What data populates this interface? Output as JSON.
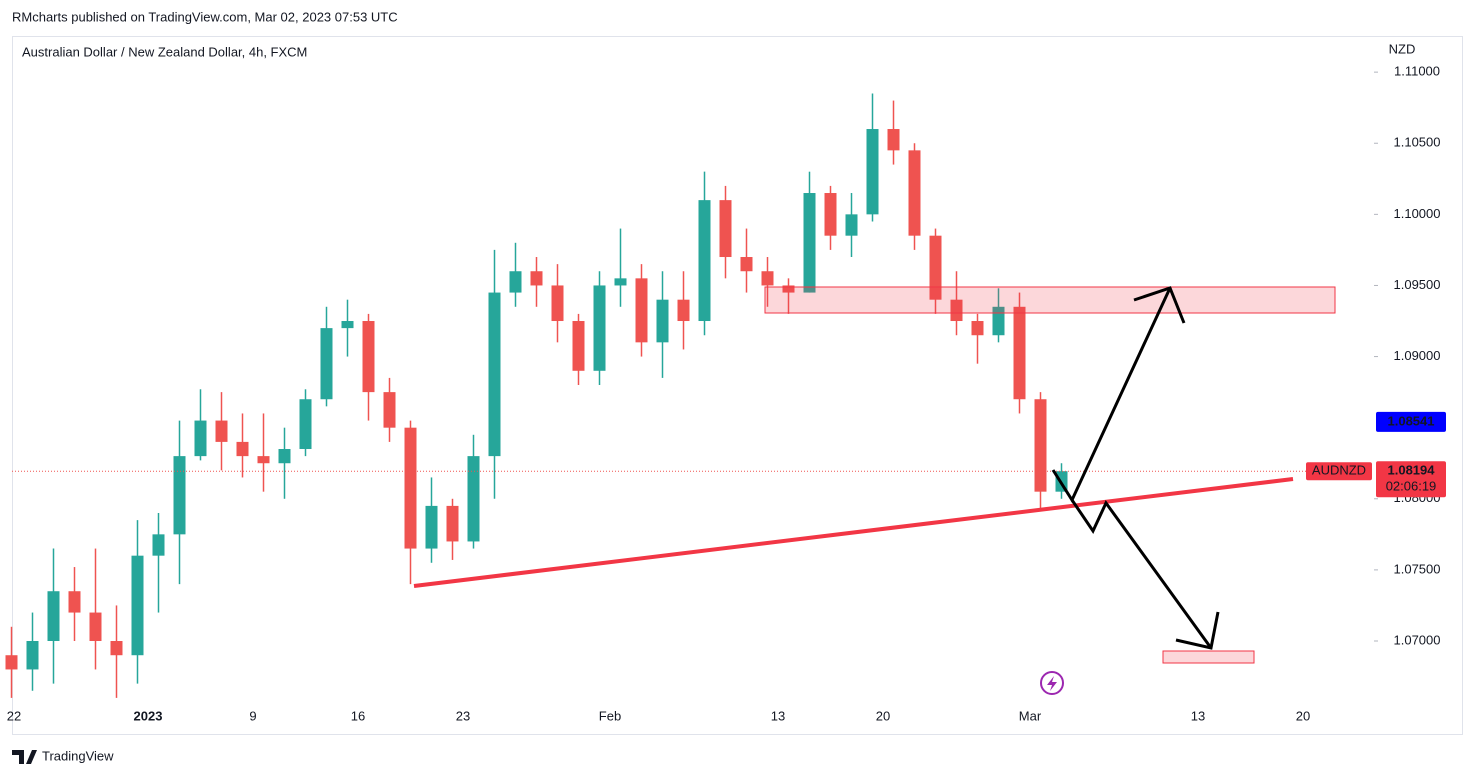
{
  "header": "RMcharts published on TradingView.com, Mar 02, 2023 07:53 UTC",
  "footer": "TradingView",
  "chart_data": {
    "type": "candlestick",
    "title": "Australian Dollar / New Zealand Dollar, 4h, FXCM",
    "currency": "NZD",
    "symbol": "AUDNZD",
    "countdown": "02:06:19",
    "indicator_value": 1.08541,
    "up_color": "#26a69a",
    "down_color": "#ef5350",
    "categories": [
      "22",
      null,
      null,
      null,
      null,
      null,
      null,
      "2023",
      null,
      null,
      null,
      null,
      "9",
      null,
      null,
      null,
      null,
      "16",
      null,
      null,
      null,
      null,
      "23",
      null,
      null,
      null,
      null,
      null,
      null,
      "Feb",
      null,
      null,
      null,
      null,
      null,
      null,
      null,
      "13",
      null,
      null,
      null,
      null,
      "20",
      null,
      null,
      null,
      null,
      null,
      null,
      "Mar",
      null,
      null,
      null,
      null,
      null,
      null,
      null,
      "13",
      null,
      null,
      null,
      null,
      "20"
    ],
    "open": [
      1.069,
      1.068,
      1.07,
      1.0735,
      1.072,
      1.07,
      1.069,
      1.076,
      1.0775,
      1.083,
      1.0855,
      1.084,
      1.083,
      1.0825,
      1.0835,
      1.087,
      1.092,
      1.0925,
      1.0875,
      1.085,
      1.0765,
      1.0795,
      1.077,
      1.083,
      1.0945,
      1.096,
      1.095,
      1.0925,
      1.089,
      1.095,
      1.0955,
      1.091,
      1.094,
      1.0925,
      1.101,
      1.097,
      1.096,
      1.095,
      1.0945,
      1.1015,
      1.0985,
      1.1,
      1.106,
      1.1045,
      1.0985,
      1.094,
      1.0925,
      1.0915,
      1.0935,
      1.087,
      1.0805,
      null,
      null,
      null,
      null,
      null,
      null,
      null,
      null,
      null,
      null,
      null,
      null
    ],
    "high": [
      1.071,
      1.072,
      1.0765,
      1.0752,
      1.0765,
      1.0725,
      1.0785,
      1.079,
      1.0855,
      1.0877,
      1.0875,
      1.086,
      1.086,
      1.085,
      1.0877,
      1.0935,
      1.094,
      1.093,
      1.0885,
      1.0855,
      1.0815,
      1.08,
      1.0845,
      1.0975,
      1.098,
      1.097,
      1.0965,
      1.093,
      1.096,
      1.099,
      1.0965,
      1.096,
      1.096,
      1.103,
      1.102,
      1.099,
      1.097,
      1.0955,
      1.103,
      1.102,
      1.1015,
      1.1085,
      1.108,
      1.105,
      1.099,
      1.096,
      1.093,
      1.0948,
      1.0945,
      1.0875,
      1.0825,
      null,
      null,
      null,
      null,
      null,
      null,
      null,
      null,
      null,
      null,
      null,
      null
    ],
    "low": [
      1.066,
      1.0665,
      1.067,
      1.07,
      1.068,
      1.066,
      1.067,
      1.072,
      1.074,
      1.0827,
      1.082,
      1.0815,
      1.0805,
      1.08,
      1.083,
      1.0865,
      1.09,
      1.0855,
      1.084,
      1.074,
      1.0755,
      1.0757,
      1.0765,
      1.08,
      1.0935,
      1.0935,
      1.091,
      1.088,
      1.088,
      1.0935,
      1.09,
      1.0885,
      1.0905,
      1.0915,
      1.0955,
      1.0945,
      1.0935,
      1.093,
      1.0945,
      1.0975,
      1.097,
      1.0995,
      1.1035,
      1.0975,
      1.093,
      1.0915,
      1.0895,
      1.091,
      1.086,
      1.0792,
      1.08,
      null,
      null,
      null,
      null,
      null,
      null,
      null,
      null,
      null,
      null,
      null,
      null
    ],
    "close": [
      1.068,
      1.07,
      1.0735,
      1.072,
      1.07,
      1.069,
      1.076,
      1.0775,
      1.083,
      1.0855,
      1.084,
      1.083,
      1.0825,
      1.0835,
      1.087,
      1.092,
      1.0925,
      1.0875,
      1.085,
      1.0765,
      1.0795,
      1.077,
      1.083,
      1.0945,
      1.096,
      1.095,
      1.0925,
      1.089,
      1.095,
      1.0955,
      1.091,
      1.094,
      1.0925,
      1.101,
      1.097,
      1.096,
      1.095,
      1.0945,
      1.1015,
      1.0985,
      1.1,
      1.106,
      1.1045,
      1.0985,
      1.094,
      1.0925,
      1.0915,
      1.0935,
      1.087,
      1.0805,
      1.08194,
      null,
      null,
      null,
      null,
      null,
      null,
      null,
      null,
      null,
      null,
      null,
      null
    ],
    "ylim": [
      1.0655,
      1.1124
    ],
    "yticks": [
      {
        "value": 1.07,
        "label": "1.07000"
      },
      {
        "value": 1.075,
        "label": "1.07500"
      },
      {
        "value": 1.08,
        "label": "1.08000"
      },
      {
        "value": 1.09,
        "label": "1.09000"
      },
      {
        "value": 1.095,
        "label": "1.09500"
      },
      {
        "value": 1.1,
        "label": "1.10000"
      },
      {
        "value": 1.105,
        "label": "1.10500"
      },
      {
        "value": 1.11,
        "label": "1.11000"
      }
    ],
    "grid": false
  }
}
